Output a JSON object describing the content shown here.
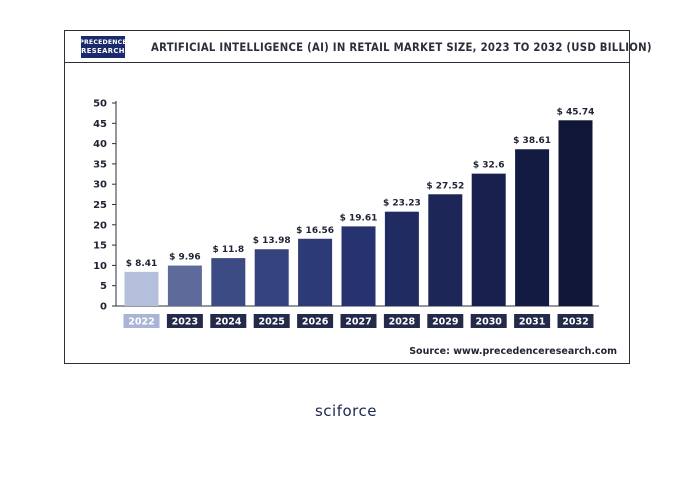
{
  "header": {
    "logo_line1": "PRECEDENCE",
    "logo_line2": "RESEARCH",
    "title": "ARTIFICIAL INTELLIGENCE (AI) IN RETAIL MARKET SIZE, 2023 TO 2032 (USD BILLION)"
  },
  "source": "Source: www.precedenceresearch.com",
  "brand": "sciforce",
  "chart_data": {
    "type": "bar",
    "title": "ARTIFICIAL INTELLIGENCE (AI) IN RETAIL MARKET SIZE, 2023 TO 2032 (USD BILLION)",
    "categories": [
      "2022",
      "2023",
      "2024",
      "2025",
      "2026",
      "2027",
      "2028",
      "2029",
      "2030",
      "2031",
      "2032"
    ],
    "values": [
      8.41,
      9.96,
      11.8,
      13.98,
      16.56,
      19.61,
      23.23,
      27.52,
      32.6,
      38.61,
      45.74
    ],
    "labels": [
      "$ 8.41",
      "$ 9.96",
      "$ 11.8",
      "$ 13.98",
      "$ 16.56",
      "$ 19.61",
      "$ 23.23",
      "$ 27.52",
      "$ 32.6",
      "$ 38.61",
      "$ 45.74"
    ],
    "yticks": [
      "0",
      "5",
      "10",
      "15",
      "20",
      "25",
      "30",
      "35",
      "40",
      "45",
      "50"
    ],
    "ylim": [
      0,
      50
    ],
    "grid": false,
    "colors": [
      "#b5c0dc",
      "#5d6a9a",
      "#3d4b85",
      "#34427e",
      "#2c3a78",
      "#263370",
      "#202b62",
      "#1c2657",
      "#18214d",
      "#141b42",
      "#101636"
    ],
    "label_bg": "#242b4a",
    "first_label_bg": "#aab4d6"
  }
}
